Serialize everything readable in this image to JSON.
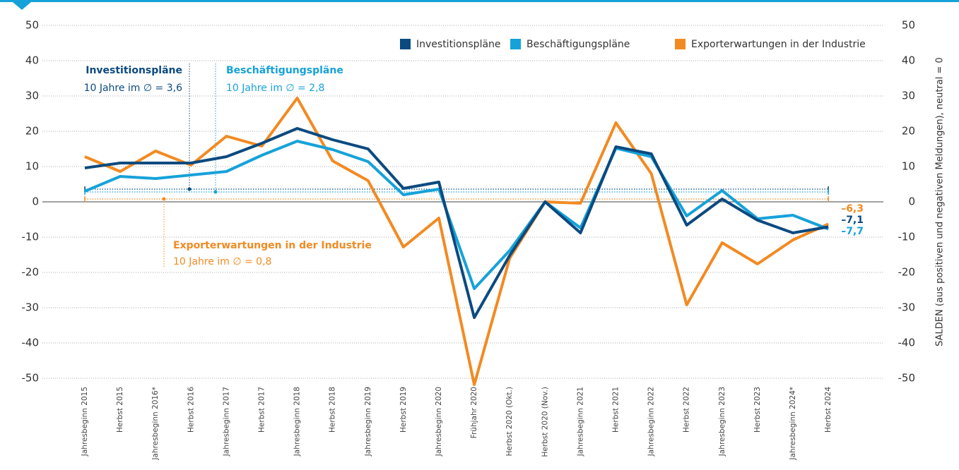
{
  "chart_data": {
    "type": "line",
    "y2label": "SALDEN (aus positiven und negativen Meldungen), neutral = 0",
    "categories": [
      "Jahresbeginn 2015",
      "Herbst 2015",
      "Jahresbeginn 2016*",
      "Herbst 2016",
      "Jahresbeginn 2017",
      "Herbst 2017",
      "Jahresbeginn 2018",
      "Herbst 2018",
      "Jahresbeginn 2019",
      "Herbst 2019",
      "Jahresbeginn 2020",
      "Frühjahr 2020",
      "Herbst 2020 (Okt.)",
      "Herbst 2020 (Nov.)",
      "Jahresbeginn 2021",
      "Herbst 2021",
      "Jahresbeginn 2022",
      "Herbst 2022",
      "Jahresbeginn 2023",
      "Herbst 2023",
      "Jahresbeginn 2024*",
      "Herbst 2024"
    ],
    "series": [
      {
        "name": "Investitionspläne",
        "color": "#0b4a7f",
        "values": [
          9.6,
          11,
          11,
          11,
          12.8,
          16.6,
          20.8,
          17.6,
          15,
          3.8,
          5.6,
          -32.8,
          -15.2,
          0,
          -8.8,
          15.6,
          13.6,
          -6.6,
          0.8,
          -5.2,
          -8.8,
          -7.1
        ],
        "value_labels": {
          "21": "–7,1"
        },
        "average": 3.6,
        "average_label": "10 Jahre im ∅ = 3,6"
      },
      {
        "name": "Beschäftigungspläne",
        "color": "#16a2d9",
        "values": [
          3,
          7.2,
          6.6,
          7.6,
          8.6,
          13.2,
          17.2,
          14.8,
          11.4,
          2,
          3.6,
          -24.6,
          -13.8,
          0,
          -7.4,
          15.2,
          12.8,
          -4,
          3.2,
          -4.8,
          -3.8,
          -7.7
        ],
        "value_labels": {
          "21": "–7,7"
        },
        "average": 2.8,
        "average_label": "10 Jahre im ∅ = 2,8"
      },
      {
        "name": "Exporterwartungen in der Industrie",
        "color": "#f28a22",
        "values": [
          12.8,
          8.6,
          14.4,
          10.4,
          18.6,
          15.8,
          29.4,
          11.6,
          6,
          -12.8,
          -4.6,
          -51.8,
          -16,
          0,
          -0.4,
          22.4,
          8,
          -29.2,
          -11.6,
          -17.6,
          -10.8,
          -6.3
        ],
        "value_labels": {
          "21": "–6,3"
        },
        "average": 0.8,
        "average_label": "10 Jahre im ∅ = 0,8"
      }
    ],
    "ylim": [
      -50,
      50
    ],
    "yticks": [
      -50,
      -40,
      -30,
      -20,
      -10,
      0,
      10,
      20,
      30,
      40,
      50
    ],
    "y2lim": [
      -50,
      50
    ],
    "y2ticks": [
      -50,
      -40,
      -30,
      -20,
      -10,
      0,
      10,
      20,
      30,
      40,
      50
    ],
    "grid": true,
    "legend": "top-right"
  }
}
